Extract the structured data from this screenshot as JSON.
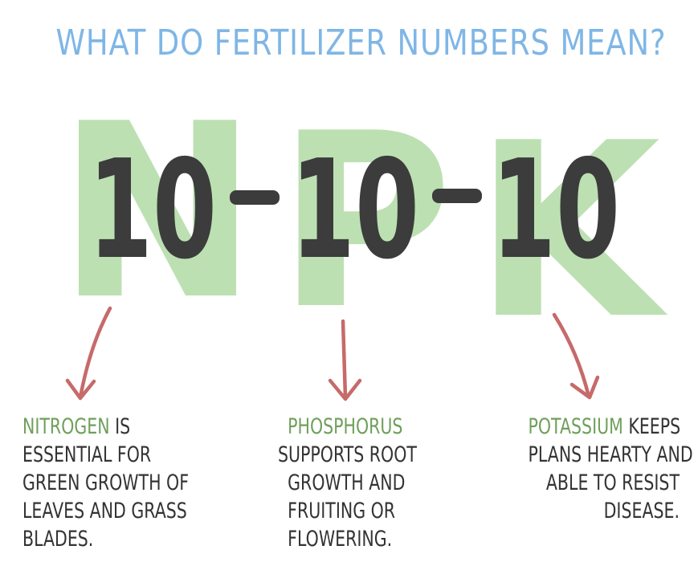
{
  "title": "WHAT DO FERTILIZER NUMBERS MEAN?",
  "ratio": {
    "nitrogen_number": "10",
    "phosphorus_number": "10",
    "potassium_number": "10",
    "separator": "-"
  },
  "letters": {
    "nitrogen": "N",
    "phosphorus": "P",
    "potassium": "K"
  },
  "nutrients": [
    {
      "keyword": "NITROGEN",
      "lines": [
        "IS",
        "ESSENTIAL FOR",
        "GREEN GROWTH OF",
        "LEAVES AND GRASS",
        "BLADES."
      ]
    },
    {
      "keyword": "PHOSPHORUS",
      "lines": [
        "SUPPORTS ROOT",
        "GROWTH AND",
        "FRUITING OR",
        "FLOWERING."
      ]
    },
    {
      "keyword": "POTASSIUM",
      "lines": [
        "KEEPS",
        "PLANS HEARTY AND",
        "ABLE TO RESIST",
        "DISEASE."
      ]
    }
  ],
  "colors": {
    "title": "#7fb6e6",
    "letters": "#a8d69a",
    "numbers": "#3c3c3c",
    "arrows": "#c76a6a",
    "keywords": "#6f9f5a",
    "text": "#333333"
  }
}
